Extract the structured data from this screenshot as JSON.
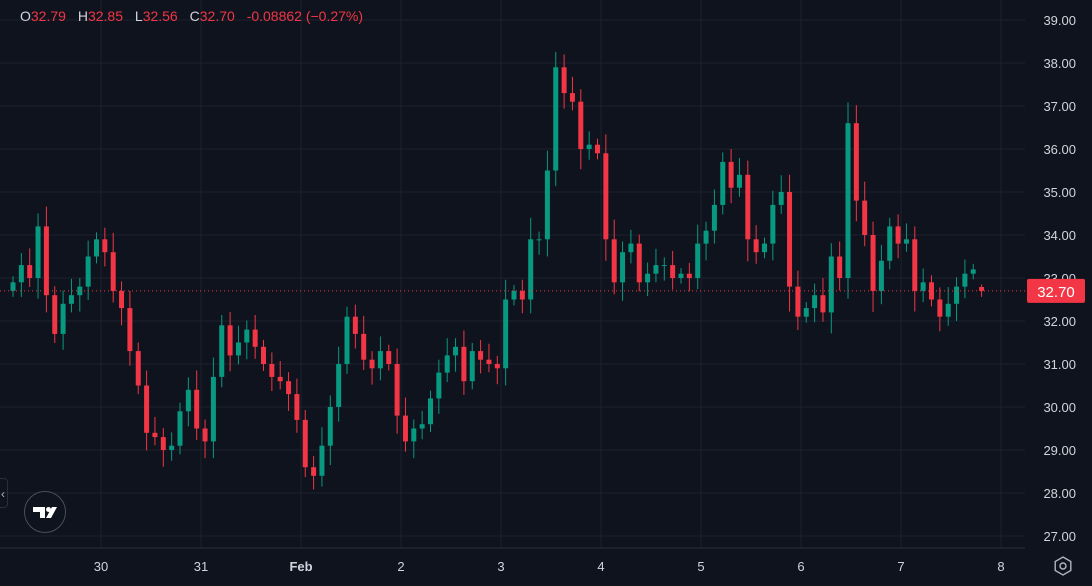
{
  "legend": {
    "o_label": "O",
    "o": "32.79",
    "h_label": "H",
    "h": "32.85",
    "l_label": "L",
    "l": "32.56",
    "c_label": "C",
    "c": "32.70",
    "change": "-0.08862 (−0.27%)"
  },
  "colors": {
    "up": "#089981",
    "down": "#f23645",
    "background": "#0f131d",
    "grid": "#1c2130",
    "text": "#d1d4dc"
  },
  "icons": {
    "collapse": "chevron-left-icon",
    "logo": "tradingview-logo",
    "settings": "gear-icon"
  },
  "chart_data": {
    "type": "candlestick",
    "ylim": [
      26.8,
      39.4
    ],
    "y_ticks": [
      "27.00",
      "28.00",
      "29.00",
      "30.00",
      "31.00",
      "32.00",
      "33.00",
      "34.00",
      "35.00",
      "36.00",
      "37.00",
      "38.00",
      "39.00"
    ],
    "x_ticks": [
      {
        "label": "30",
        "bold": false
      },
      {
        "label": "31",
        "bold": false
      },
      {
        "label": "Feb",
        "bold": true
      },
      {
        "label": "2",
        "bold": false
      },
      {
        "label": "3",
        "bold": false
      },
      {
        "label": "4",
        "bold": false
      },
      {
        "label": "5",
        "bold": false
      },
      {
        "label": "6",
        "bold": false
      },
      {
        "label": "7",
        "bold": false
      },
      {
        "label": "8",
        "bold": false
      }
    ],
    "last_price": "32.70",
    "first_open": 32.7,
    "last_candle": {
      "open": 32.79,
      "high": 32.85,
      "low": 32.56,
      "close": 32.7
    },
    "close": [
      32.9,
      33.3,
      33.0,
      34.2,
      32.6,
      31.7,
      32.4,
      32.6,
      32.8,
      33.5,
      33.9,
      33.6,
      32.7,
      32.3,
      31.3,
      30.5,
      29.4,
      29.3,
      29.0,
      29.1,
      29.9,
      30.4,
      29.5,
      29.2,
      30.7,
      31.9,
      31.2,
      31.5,
      31.8,
      31.4,
      31.0,
      30.7,
      30.6,
      30.3,
      29.7,
      28.6,
      28.4,
      29.1,
      30.0,
      31.0,
      32.1,
      31.7,
      31.1,
      30.9,
      31.3,
      31.0,
      29.8,
      29.2,
      29.5,
      29.6,
      30.2,
      30.8,
      31.2,
      31.4,
      30.6,
      31.3,
      31.1,
      31.0,
      30.9,
      32.5,
      32.7,
      32.5,
      33.9,
      33.9,
      35.5,
      37.9,
      37.3,
      37.1,
      36.0,
      36.1,
      35.9,
      33.9,
      32.9,
      33.6,
      33.8,
      32.9,
      33.1,
      33.3,
      33.3,
      33.0,
      33.1,
      33.0,
      33.8,
      34.1,
      34.7,
      35.7,
      35.1,
      35.4,
      33.9,
      33.6,
      33.8,
      34.7,
      35.0,
      32.8,
      32.1,
      32.3,
      32.6,
      32.2,
      33.5,
      33.0,
      36.6,
      34.8,
      34.0,
      32.7,
      33.4,
      34.2,
      33.8,
      33.9,
      32.7,
      32.9,
      32.5,
      32.1,
      32.4,
      32.8,
      33.1,
      33.2,
      32.79
    ]
  }
}
